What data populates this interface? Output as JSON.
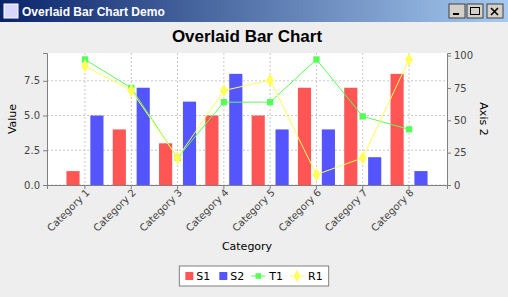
{
  "window": {
    "title": "Overlaid Bar Chart Demo"
  },
  "chart_data": {
    "type": "bar",
    "title": "Overlaid Bar Chart",
    "x_label": "Category",
    "y_label": "Value",
    "y2_label": "Axis 2",
    "categories": [
      "Category 1",
      "Category 2",
      "Category 3",
      "Category 4",
      "Category 5",
      "Category 6",
      "Category 7",
      "Category 8"
    ],
    "series": [
      {
        "name": "S1",
        "type": "bar",
        "color": "#ff5555",
        "values": [
          1,
          4,
          3,
          5,
          5,
          7,
          7,
          8
        ]
      },
      {
        "name": "S2",
        "type": "bar",
        "color": "#5555ff",
        "values": [
          5,
          7,
          6,
          8,
          4,
          4,
          2,
          1
        ]
      },
      {
        "name": "T1",
        "type": "line",
        "color": "#55ff55",
        "marker": "square",
        "line_style": "solid",
        "axis": "y2",
        "values": [
          97,
          75,
          21,
          64,
          64,
          97,
          53,
          43
        ]
      },
      {
        "name": "R1",
        "type": "line",
        "color": "#ffff55",
        "marker": "diamond",
        "line_style": "solid",
        "axis": "y2",
        "values": [
          92,
          73,
          21,
          73,
          81,
          8,
          21,
          97
        ]
      }
    ],
    "ylim": [
      0,
      9.5
    ],
    "yticks": [
      {
        "value": 0,
        "label": "0.0"
      },
      {
        "value": 2.5,
        "label": "2.5"
      },
      {
        "value": 5,
        "label": "5.0"
      },
      {
        "value": 7.5,
        "label": "7.5"
      }
    ],
    "y2lim": [
      0,
      102
    ],
    "y2ticks": [
      0,
      25,
      50,
      75,
      100
    ],
    "grid": true,
    "legend": "bottom"
  }
}
